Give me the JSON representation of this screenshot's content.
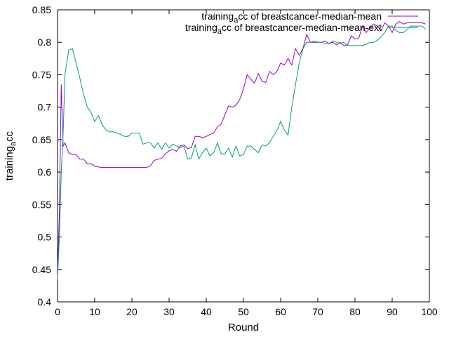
{
  "chart_data": {
    "type": "line",
    "xlabel": "Round",
    "ylabel": {
      "base": "training",
      "sub": "a",
      "rest": "cc"
    },
    "xlim": [
      0,
      100
    ],
    "ylim": [
      0.4,
      0.85
    ],
    "xticks": [
      0,
      10,
      20,
      30,
      40,
      50,
      60,
      70,
      80,
      90,
      100
    ],
    "yticks": [
      0.4,
      0.45,
      0.5,
      0.55,
      0.6,
      0.65,
      0.7,
      0.75,
      0.8,
      0.85
    ],
    "ytick_labels": [
      "0.4",
      "0.45",
      "0.5",
      "0.55",
      "0.6",
      "0.65",
      "0.7",
      "0.75",
      "0.8",
      "0.85"
    ],
    "legend_position": "top-right",
    "grid": false,
    "series": [
      {
        "name": "training_acc of breastcancer-median-mean",
        "label": {
          "base": "training",
          "sub": "a",
          "rest": "cc of breastcancer-median-mean"
        },
        "color": "#9400d3",
        "x": [
          0,
          0.5,
          1,
          1.5,
          2,
          3,
          4,
          5,
          6,
          7,
          8,
          9,
          10,
          11,
          12,
          13,
          14,
          15,
          16,
          17,
          18,
          19,
          20,
          21,
          22,
          23,
          24,
          25,
          26,
          27,
          28,
          29,
          30,
          31,
          32,
          33,
          34,
          35,
          36,
          37,
          38,
          39,
          40,
          41,
          42,
          43,
          44,
          45,
          46,
          47,
          48,
          49,
          50,
          51,
          52,
          53,
          54,
          55,
          56,
          57,
          58,
          59,
          60,
          61,
          62,
          63,
          64,
          65,
          66,
          67,
          68,
          69,
          70,
          71,
          72,
          73,
          74,
          75,
          76,
          77,
          78,
          79,
          80,
          81,
          82,
          83,
          84,
          85,
          86,
          87,
          88,
          89,
          90,
          91,
          92,
          93,
          94,
          95,
          96,
          97,
          98,
          99
        ],
        "y": [
          0.44,
          0.54,
          0.735,
          0.64,
          0.645,
          0.63,
          0.627,
          0.627,
          0.62,
          0.62,
          0.613,
          0.613,
          0.609,
          0.608,
          0.607,
          0.607,
          0.607,
          0.607,
          0.607,
          0.607,
          0.607,
          0.607,
          0.607,
          0.607,
          0.607,
          0.607,
          0.607,
          0.61,
          0.618,
          0.62,
          0.621,
          0.628,
          0.633,
          0.635,
          0.632,
          0.64,
          0.642,
          0.636,
          0.638,
          0.655,
          0.655,
          0.653,
          0.655,
          0.658,
          0.66,
          0.67,
          0.674,
          0.688,
          0.702,
          0.7,
          0.703,
          0.712,
          0.728,
          0.75,
          0.743,
          0.737,
          0.752,
          0.74,
          0.738,
          0.755,
          0.75,
          0.755,
          0.768,
          0.765,
          0.775,
          0.765,
          0.79,
          0.78,
          0.79,
          0.812,
          0.8,
          0.8,
          0.8,
          0.8,
          0.802,
          0.798,
          0.8,
          0.796,
          0.8,
          0.795,
          0.796,
          0.81,
          0.805,
          0.806,
          0.825,
          0.815,
          0.822,
          0.828,
          0.825,
          0.818,
          0.83,
          0.825,
          0.815,
          0.828,
          0.832,
          0.828,
          0.83,
          0.83,
          0.83,
          0.83,
          0.83,
          0.828
        ]
      },
      {
        "name": "training_acc of breastcancer-median-mean-ext",
        "label": {
          "base": "training",
          "sub": "a",
          "rest": "cc of breastcancer-median-mean-ext"
        },
        "color": "#009e73",
        "x": [
          0,
          0.5,
          1,
          1.5,
          2,
          3,
          4,
          5,
          6,
          7,
          8,
          9,
          10,
          11,
          12,
          13,
          14,
          15,
          16,
          17,
          18,
          19,
          20,
          21,
          22,
          23,
          24,
          25,
          26,
          27,
          28,
          29,
          30,
          31,
          32,
          33,
          34,
          35,
          36,
          37,
          38,
          39,
          40,
          41,
          42,
          43,
          44,
          45,
          46,
          47,
          48,
          49,
          50,
          51,
          52,
          53,
          54,
          55,
          56,
          57,
          58,
          59,
          60,
          61,
          62,
          63,
          64,
          65,
          66,
          67,
          68,
          69,
          70,
          71,
          72,
          73,
          74,
          75,
          76,
          77,
          78,
          79,
          80,
          81,
          82,
          83,
          84,
          85,
          86,
          87,
          88,
          89,
          90,
          91,
          92,
          93,
          94,
          95,
          96,
          97,
          98,
          99
        ],
        "y": [
          0.435,
          0.5,
          0.6,
          0.66,
          0.75,
          0.788,
          0.79,
          0.768,
          0.745,
          0.72,
          0.7,
          0.692,
          0.678,
          0.687,
          0.673,
          0.665,
          0.662,
          0.662,
          0.66,
          0.658,
          0.655,
          0.655,
          0.66,
          0.66,
          0.66,
          0.643,
          0.645,
          0.645,
          0.637,
          0.645,
          0.635,
          0.645,
          0.637,
          0.643,
          0.64,
          0.638,
          0.64,
          0.62,
          0.622,
          0.642,
          0.62,
          0.63,
          0.637,
          0.625,
          0.63,
          0.645,
          0.628,
          0.628,
          0.637,
          0.623,
          0.64,
          0.625,
          0.627,
          0.64,
          0.64,
          0.635,
          0.63,
          0.642,
          0.64,
          0.645,
          0.655,
          0.664,
          0.678,
          0.665,
          0.657,
          0.7,
          0.735,
          0.768,
          0.79,
          0.8,
          0.8,
          0.802,
          0.8,
          0.8,
          0.798,
          0.798,
          0.802,
          0.8,
          0.798,
          0.8,
          0.795,
          0.795,
          0.795,
          0.795,
          0.795,
          0.797,
          0.8,
          0.8,
          0.803,
          0.808,
          0.815,
          0.825,
          0.825,
          0.818,
          0.815,
          0.815,
          0.82,
          0.825,
          0.825,
          0.825,
          0.825,
          0.82
        ]
      }
    ]
  }
}
